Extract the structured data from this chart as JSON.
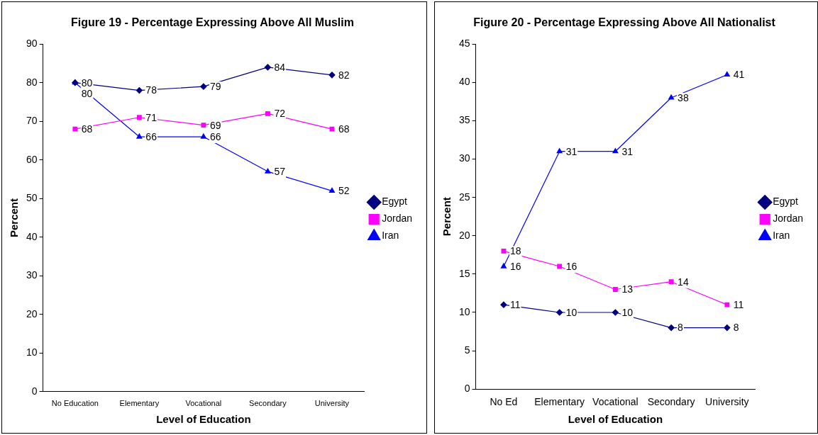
{
  "chart_data": [
    {
      "type": "line",
      "title": "Figure 19 - Percentage Expressing Above All Muslim",
      "xlabel": "Level of Education",
      "ylabel": "Percent",
      "categories": [
        "No Education",
        "Elementary",
        "Vocational",
        "Secondary",
        "University"
      ],
      "series": [
        {
          "name": "Egypt",
          "color": "#000080",
          "marker": "diamond",
          "values": [
            80,
            78,
            79,
            84,
            82
          ]
        },
        {
          "name": "Jordan",
          "color": "#ff00ff",
          "marker": "square",
          "values": [
            68,
            71,
            69,
            72,
            68
          ]
        },
        {
          "name": "Iran",
          "color": "#0000ff",
          "marker": "triangle",
          "values": [
            80,
            66,
            66,
            57,
            52
          ]
        }
      ],
      "ylim": [
        0,
        90
      ],
      "yticks": [
        0,
        10,
        20,
        30,
        40,
        50,
        60,
        70,
        80,
        90
      ],
      "grid": false,
      "legend": "right",
      "data_labels": true
    },
    {
      "type": "line",
      "title": "Figure 20 - Percentage Expressing Above All Nationalist",
      "xlabel": "Level of Education",
      "ylabel": "Percent",
      "categories": [
        "No Ed",
        "Elementary",
        "Vocational",
        "Secondary",
        "University"
      ],
      "series": [
        {
          "name": "Egypt",
          "color": "#000080",
          "marker": "diamond",
          "values": [
            11,
            10,
            10,
            8,
            8
          ]
        },
        {
          "name": "Jordan",
          "color": "#ff00ff",
          "marker": "square",
          "values": [
            18,
            16,
            13,
            14,
            11
          ]
        },
        {
          "name": "Iran",
          "color": "#0000ff",
          "marker": "triangle",
          "values": [
            16,
            31,
            31,
            38,
            41
          ]
        }
      ],
      "ylim": [
        0,
        45
      ],
      "yticks": [
        0,
        5,
        10,
        15,
        20,
        25,
        30,
        35,
        40,
        45
      ],
      "grid": false,
      "legend": "right",
      "data_labels": true
    }
  ]
}
